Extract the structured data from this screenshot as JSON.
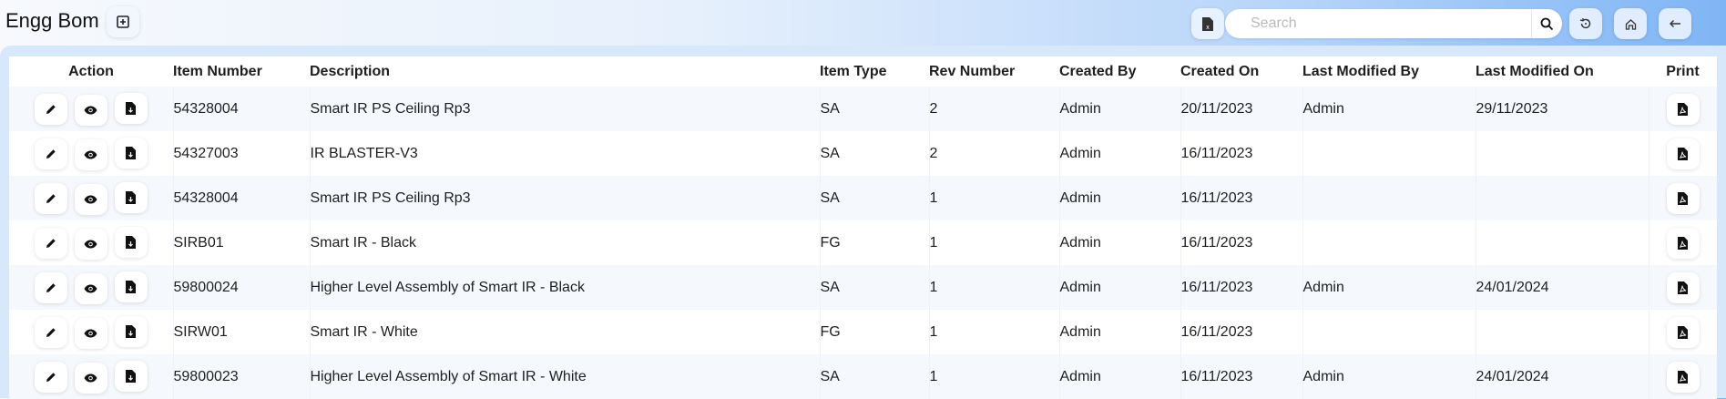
{
  "header": {
    "title": "Engg Bom",
    "search_placeholder": "Search",
    "search_value": ""
  },
  "icons": {
    "add": "plus-square-icon",
    "excel": "excel-file-icon",
    "search": "search-icon",
    "history": "history-icon",
    "home": "home-icon",
    "back": "arrow-left-icon",
    "edit": "pencil-icon",
    "view": "eye-icon",
    "download": "file-download-icon",
    "pdf": "pdf-icon"
  },
  "table": {
    "columns": [
      "Action",
      "Item Number",
      "Description",
      "Item Type",
      "Rev Number",
      "Created By",
      "Created On",
      "Last Modified By",
      "Last Modified On",
      "Print"
    ],
    "rows": [
      {
        "item_number": "54328004",
        "description": "Smart IR PS Ceiling Rp3",
        "item_type": "SA",
        "rev": "2",
        "created_by": "Admin",
        "created_on": "20/11/2023",
        "modified_by": "Admin",
        "modified_on": "29/11/2023"
      },
      {
        "item_number": "54327003",
        "description": "IR BLASTER-V3",
        "item_type": "SA",
        "rev": "2",
        "created_by": "Admin",
        "created_on": "16/11/2023",
        "modified_by": "",
        "modified_on": ""
      },
      {
        "item_number": "54328004",
        "description": "Smart IR PS Ceiling Rp3",
        "item_type": "SA",
        "rev": "1",
        "created_by": "Admin",
        "created_on": "16/11/2023",
        "modified_by": "",
        "modified_on": ""
      },
      {
        "item_number": "SIRB01",
        "description": "Smart IR - Black",
        "item_type": "FG",
        "rev": "1",
        "created_by": "Admin",
        "created_on": "16/11/2023",
        "modified_by": "",
        "modified_on": ""
      },
      {
        "item_number": "59800024",
        "description": "Higher Level Assembly of Smart IR - Black",
        "item_type": "SA",
        "rev": "1",
        "created_by": "Admin",
        "created_on": "16/11/2023",
        "modified_by": "Admin",
        "modified_on": "24/01/2024"
      },
      {
        "item_number": "SIRW01",
        "description": "Smart IR - White",
        "item_type": "FG",
        "rev": "1",
        "created_by": "Admin",
        "created_on": "16/11/2023",
        "modified_by": "",
        "modified_on": ""
      },
      {
        "item_number": "59800023",
        "description": "Higher Level Assembly of Smart IR - White",
        "item_type": "SA",
        "rev": "1",
        "created_by": "Admin",
        "created_on": "16/11/2023",
        "modified_by": "Admin",
        "modified_on": "24/01/2024"
      }
    ]
  }
}
